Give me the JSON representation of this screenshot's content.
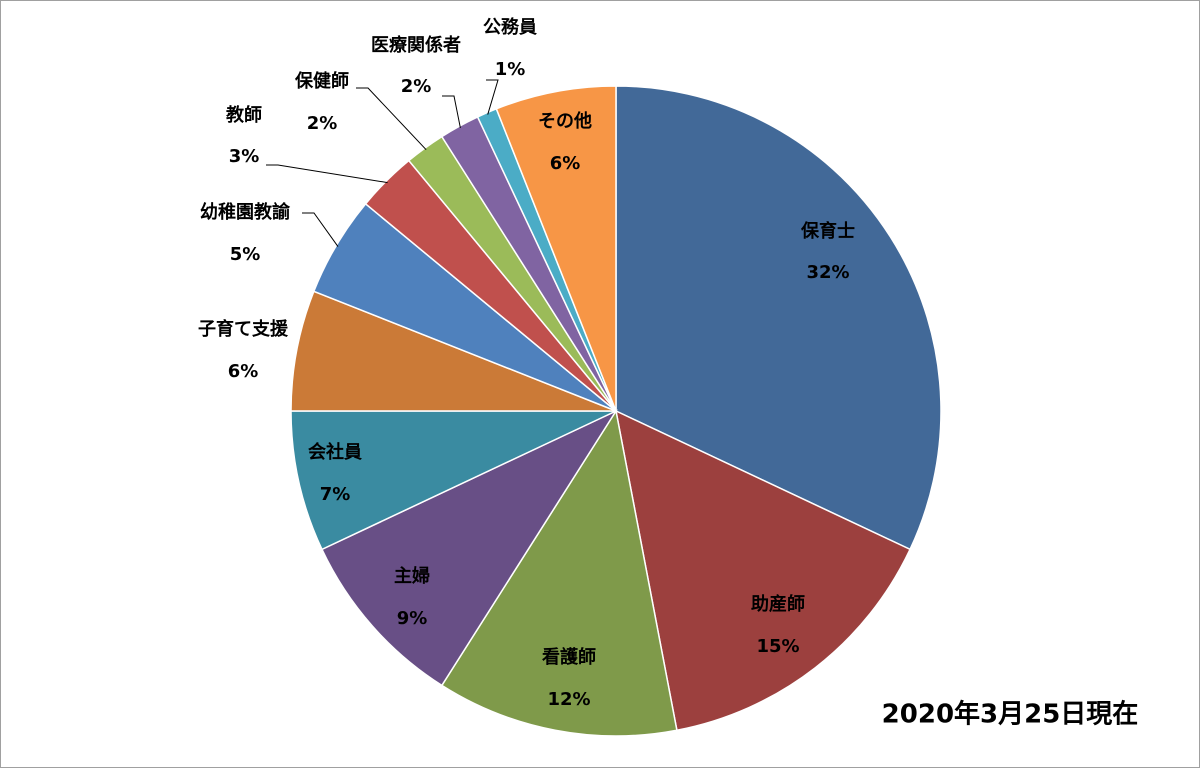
{
  "chart_data": {
    "type": "pie",
    "annotation": "2020年3月25日現在",
    "categories": [
      "保育士",
      "助産師",
      "看護師",
      "主婦",
      "会社員",
      "子育て支援",
      "幼稚園教諭",
      "教師",
      "保健師",
      "医療関係者",
      "公務員",
      "その他"
    ],
    "values": [
      32,
      15,
      12,
      9,
      7,
      6,
      5,
      3,
      2,
      2,
      1,
      6
    ],
    "value_labels": [
      "32%",
      "15%",
      "12%",
      "9%",
      "7%",
      "6%",
      "5%",
      "3%",
      "2%",
      "2%",
      "1%",
      "6%"
    ],
    "colors": [
      "#426998",
      "#9c403e",
      "#7f9a4a",
      "#684f86",
      "#3a8ba1",
      "#cb7a37",
      "#4f81bd",
      "#c0504d",
      "#9bbb59",
      "#8064a2",
      "#4bacc6",
      "#f79646"
    ]
  }
}
